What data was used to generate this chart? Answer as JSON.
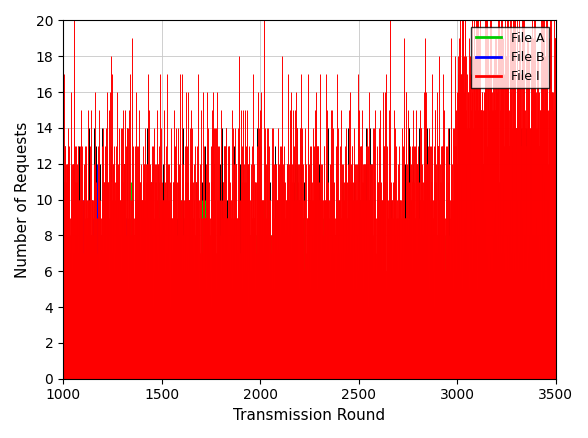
{
  "xlabel": "Transmission Round",
  "ylabel": "Number of Requests",
  "xlim": [
    1000,
    3500
  ],
  "ylim": [
    0,
    20
  ],
  "xticks": [
    1000,
    1500,
    2000,
    2500,
    3000,
    3500
  ],
  "yticks": [
    0,
    2,
    4,
    6,
    8,
    10,
    12,
    14,
    16,
    18,
    20
  ],
  "legend_entries": [
    "File A",
    "File B",
    "File I"
  ],
  "color_A": "#00cc00",
  "color_B": "#0000ff",
  "color_I": "#ff0000",
  "color_other": "#000000",
  "x_start": 1000,
  "x_end": 3500,
  "phase1_end": 1450,
  "phase3_start": 3000,
  "background_color": "#ffffff",
  "grid_color": "#c8c8c8"
}
